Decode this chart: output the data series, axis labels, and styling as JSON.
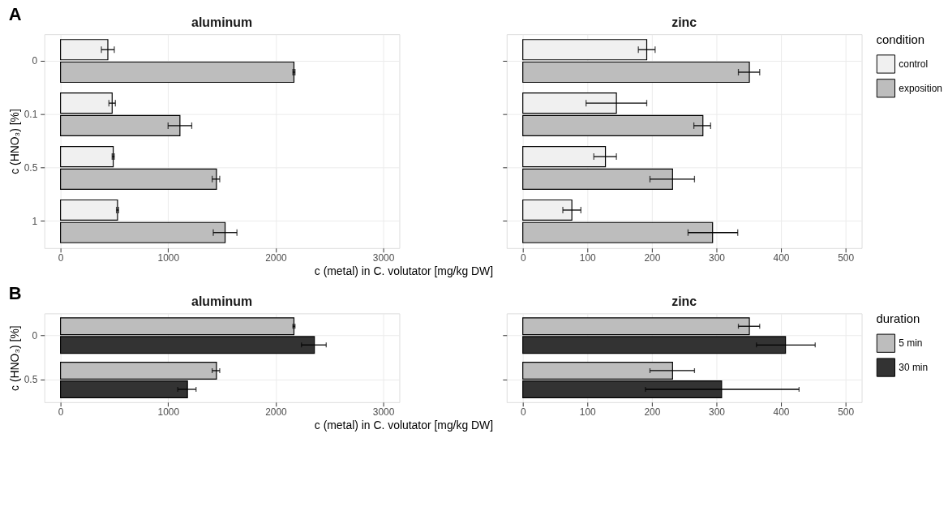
{
  "chart_data": [
    {
      "type": "bar",
      "orientation": "horizontal",
      "title": "aluminum",
      "annotations": [
        "A"
      ],
      "xlabel": "c (metal) in C. volutator [mg/kg DW]",
      "ylabel": "c (HNO₃) [%]",
      "categories": [
        "0",
        "0.1",
        "0.5",
        "1"
      ],
      "xlim": [
        -150,
        3150
      ],
      "xticks": [
        0,
        1000,
        2000,
        3000
      ],
      "grid": true,
      "series": [
        {
          "color": "#f0f0f0",
          "values": [
            440,
            480,
            490,
            530
          ],
          "errors": [
            [
              380,
              500
            ],
            [
              450,
              510
            ],
            [
              480,
              500
            ],
            [
              520,
              540
            ]
          ]
        },
        {
          "color": "#bdbdbd",
          "values": [
            2170,
            1110,
            1450,
            1530
          ],
          "errors": [
            [
              2160,
              2180
            ],
            [
              1000,
              1220
            ],
            [
              1410,
              1480
            ],
            [
              1420,
              1640
            ]
          ]
        }
      ]
    },
    {
      "type": "bar",
      "orientation": "horizontal",
      "title": "zinc",
      "categories": [
        "0",
        "0.1",
        "0.5",
        "1"
      ],
      "xlim": [
        -25,
        525
      ],
      "xticks": [
        0,
        100,
        200,
        300,
        400,
        500
      ],
      "grid": true,
      "tick_labels": "x",
      "legend": "right",
      "legend_title": "condition",
      "series": [
        {
          "name": "control",
          "color": "#f0f0f0",
          "values": [
            192,
            145,
            128,
            76
          ],
          "errors": [
            [
              179,
              205
            ],
            [
              98,
              192
            ],
            [
              110,
              145
            ],
            [
              62,
              90
            ]
          ]
        },
        {
          "name": "exposition",
          "color": "#bdbdbd",
          "values": [
            351,
            279,
            232,
            294
          ],
          "errors": [
            [
              334,
              367
            ],
            [
              265,
              291
            ],
            [
              197,
              266
            ],
            [
              256,
              333
            ]
          ]
        }
      ]
    },
    {
      "type": "bar",
      "orientation": "horizontal",
      "title": "aluminum",
      "annotations": [
        "B"
      ],
      "xlabel": "c (metal) in C. volutator [mg/kg DW]",
      "ylabel": "c (HNO₃) [%]",
      "categories": [
        "0",
        "0.5"
      ],
      "xlim": [
        -150,
        3150
      ],
      "xticks": [
        0,
        1000,
        2000,
        3000
      ],
      "grid": true,
      "series": [
        {
          "color": "#bdbdbd",
          "values": [
            2170,
            1450
          ],
          "errors": [
            [
              2160,
              2180
            ],
            [
              1410,
              1480
            ]
          ]
        },
        {
          "color": "#333333",
          "values": [
            2360,
            1180
          ],
          "errors": [
            [
              2240,
              2470
            ],
            [
              1090,
              1260
            ]
          ]
        }
      ]
    },
    {
      "type": "bar",
      "orientation": "horizontal",
      "title": "zinc",
      "categories": [
        "0",
        "0.5"
      ],
      "xlim": [
        -25,
        525
      ],
      "xticks": [
        0,
        100,
        200,
        300,
        400,
        500
      ],
      "grid": true,
      "tick_labels": "x",
      "legend": "right",
      "legend_title": "duration",
      "series": [
        {
          "name": "5 min",
          "color": "#bdbdbd",
          "values": [
            351,
            232
          ],
          "errors": [
            [
              334,
              367
            ],
            [
              197,
              266
            ]
          ]
        },
        {
          "name": "30 min",
          "color": "#333333",
          "values": [
            407,
            308
          ],
          "errors": [
            [
              362,
              453
            ],
            [
              190,
              428
            ]
          ]
        }
      ]
    }
  ]
}
